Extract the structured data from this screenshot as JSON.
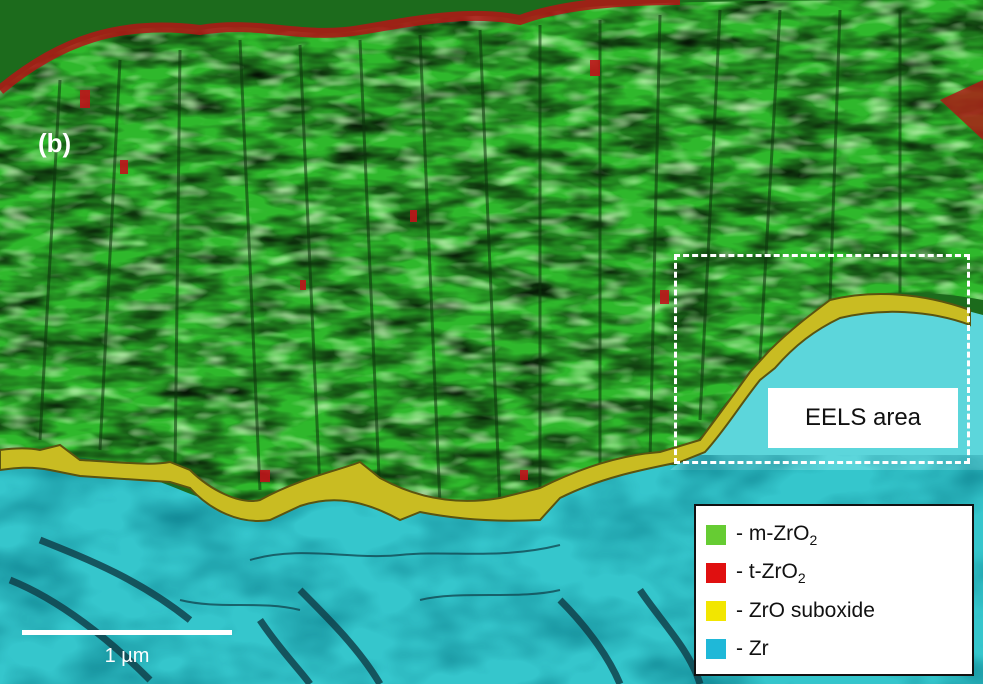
{
  "panel_label": "(b)",
  "roi": {
    "label": "EELS area"
  },
  "scale_bar": {
    "label": "1 µm"
  },
  "legend": {
    "items": [
      {
        "prefix": "- m-ZrO",
        "sub": "2",
        "suffix": "",
        "color": "#66cc33"
      },
      {
        "prefix": "- t-ZrO",
        "sub": "2",
        "suffix": "",
        "color": "#e01010"
      },
      {
        "prefix": "- ZrO suboxide",
        "sub": "",
        "suffix": "",
        "color": "#f2e600"
      },
      {
        "prefix": "- Zr",
        "sub": "",
        "suffix": "",
        "color": "#1fb8d8"
      }
    ]
  },
  "phase_colors": {
    "m_zro2": "#3fe63a",
    "t_zro2": "#b31515",
    "suboxide": "#b3a81f",
    "zr": "#35c6cc"
  }
}
